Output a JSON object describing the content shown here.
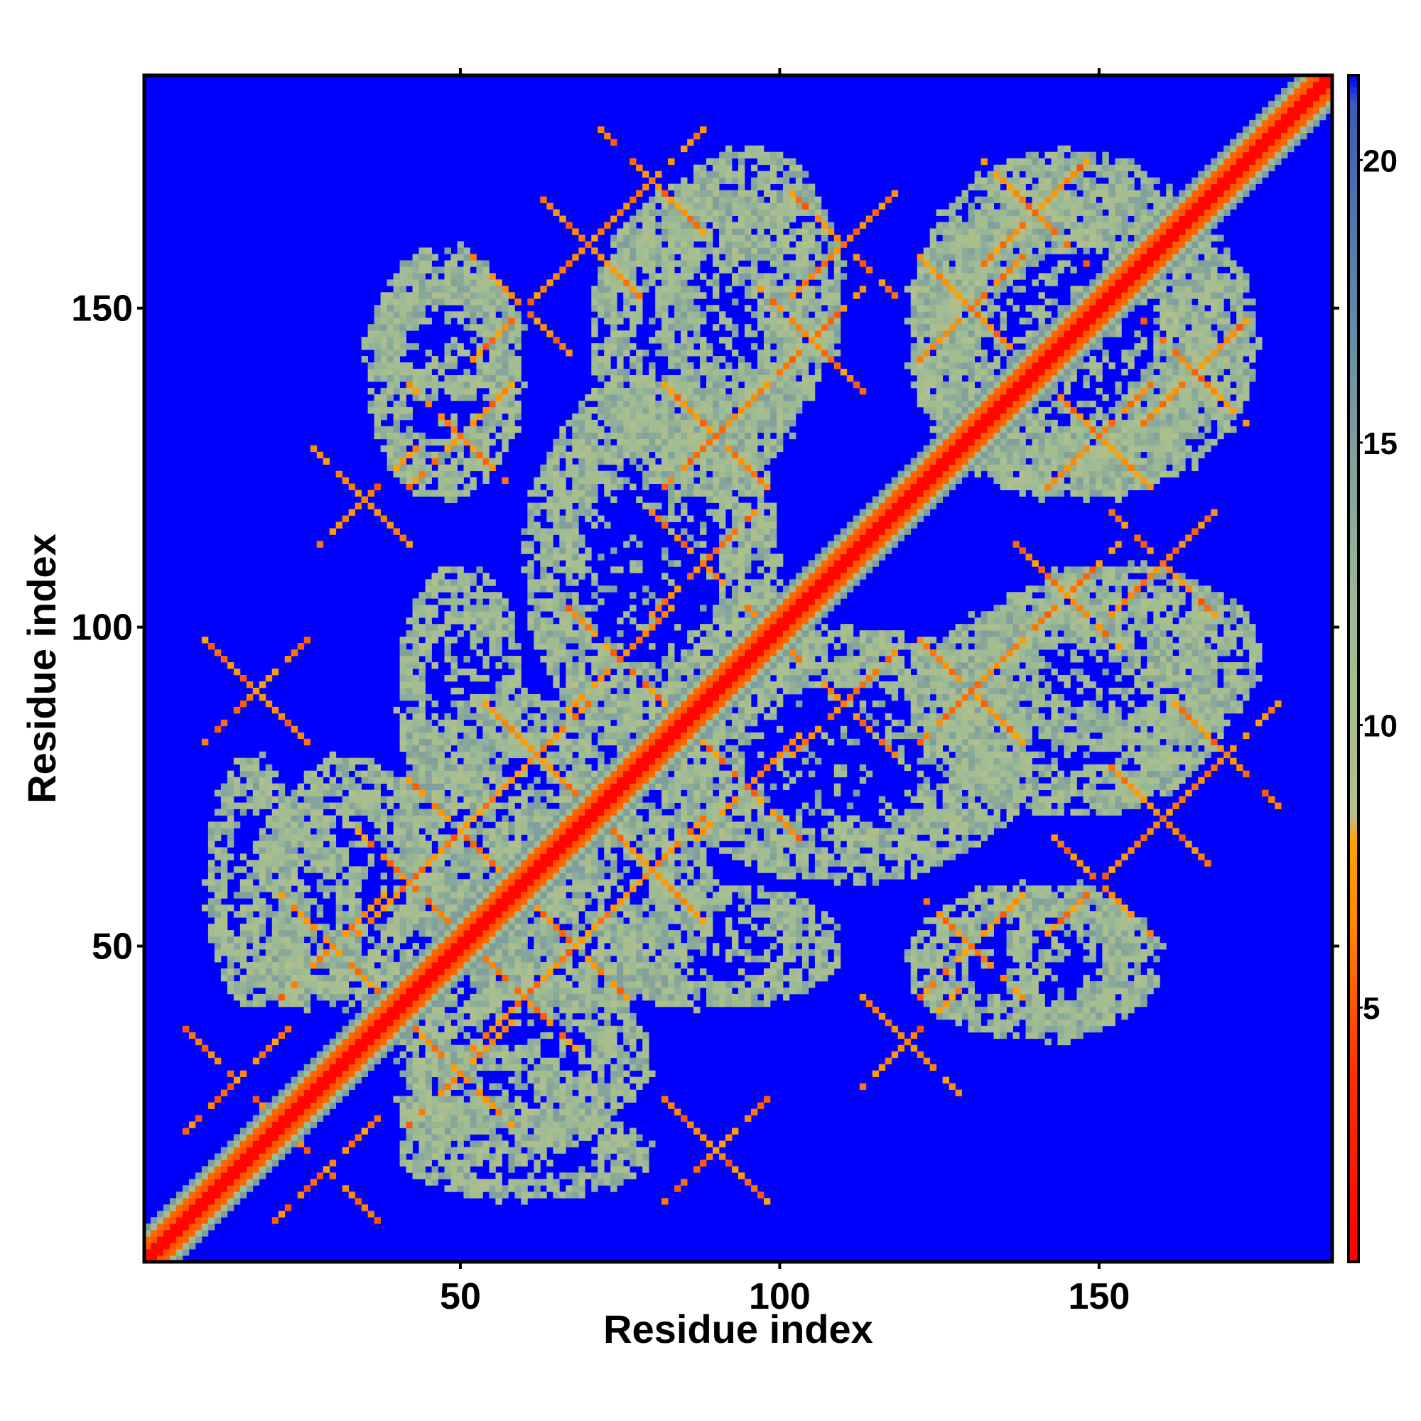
{
  "chart_data": {
    "type": "heatmap",
    "title": "",
    "xlabel": "Residue index",
    "ylabel": "Residue index",
    "xlim": [
      1,
      186
    ],
    "ylim": [
      1,
      186
    ],
    "x_ticks": [
      50,
      100,
      150
    ],
    "y_ticks": [
      50,
      100,
      150
    ],
    "n_residues": 186,
    "colorbar": {
      "range": [
        0.5,
        21.5
      ],
      "ticks": [
        5,
        10,
        15,
        20
      ],
      "stops": [
        {
          "value": 0.5,
          "color": "#ff0000"
        },
        {
          "value": 4.0,
          "color": "#ff3300"
        },
        {
          "value": 6.5,
          "color": "#ff8800"
        },
        {
          "value": 8.0,
          "color": "#ffa500"
        },
        {
          "value": 8.4,
          "color": "#b4c08a"
        },
        {
          "value": 12.0,
          "color": "#9dbb94"
        },
        {
          "value": 18.0,
          "color": "#5f7fa8"
        },
        {
          "value": 21.0,
          "color": "#3d5bb8"
        },
        {
          "value": 21.5,
          "color": "#0000ff"
        }
      ]
    },
    "background_value": 21.5,
    "diagonal": {
      "core_value": 1.0,
      "band_halfwidth": 3
    },
    "cross_contact_centers": [
      [
        15,
        29
      ],
      [
        30,
        50
      ],
      [
        42,
        60
      ],
      [
        50,
        68
      ],
      [
        62,
        80
      ],
      [
        75,
        95
      ],
      [
        88,
        110
      ],
      [
        90,
        130
      ],
      [
        105,
        145
      ],
      [
        110,
        160
      ],
      [
        130,
        150
      ],
      [
        140,
        165
      ],
      [
        18,
        90
      ],
      [
        35,
        120
      ],
      [
        50,
        130
      ],
      [
        60,
        150
      ],
      [
        70,
        160
      ],
      [
        80,
        170
      ]
    ],
    "off_diagonal_regions": [
      {
        "x": [
          20,
          45
        ],
        "y": [
          40,
          80
        ],
        "value": 12
      },
      {
        "x": [
          40,
          75
        ],
        "y": [
          45,
          90
        ],
        "value": 12
      },
      {
        "x": [
          60,
          100
        ],
        "y": [
          80,
          140
        ],
        "value": 12
      },
      {
        "x": [
          80,
          110
        ],
        "y": [
          130,
          175
        ],
        "value": 12
      },
      {
        "x": [
          35,
          60
        ],
        "y": [
          120,
          160
        ],
        "value": 12
      },
      {
        "x": [
          120,
          170
        ],
        "y": [
          120,
          175
        ],
        "value": 12
      },
      {
        "x": [
          120,
          170
        ],
        "y": [
          70,
          105
        ],
        "value": 12
      },
      {
        "x": [
          70,
          110
        ],
        "y": [
          40,
          60
        ],
        "value": 12
      },
      {
        "x": [
          135,
          155
        ],
        "y": [
          35,
          60
        ],
        "value": 12
      },
      {
        "x": [
          40,
          70
        ],
        "y": [
          15,
          35
        ],
        "value": 12
      },
      {
        "x": [
          10,
          25
        ],
        "y": [
          40,
          80
        ],
        "value": 12
      }
    ]
  }
}
